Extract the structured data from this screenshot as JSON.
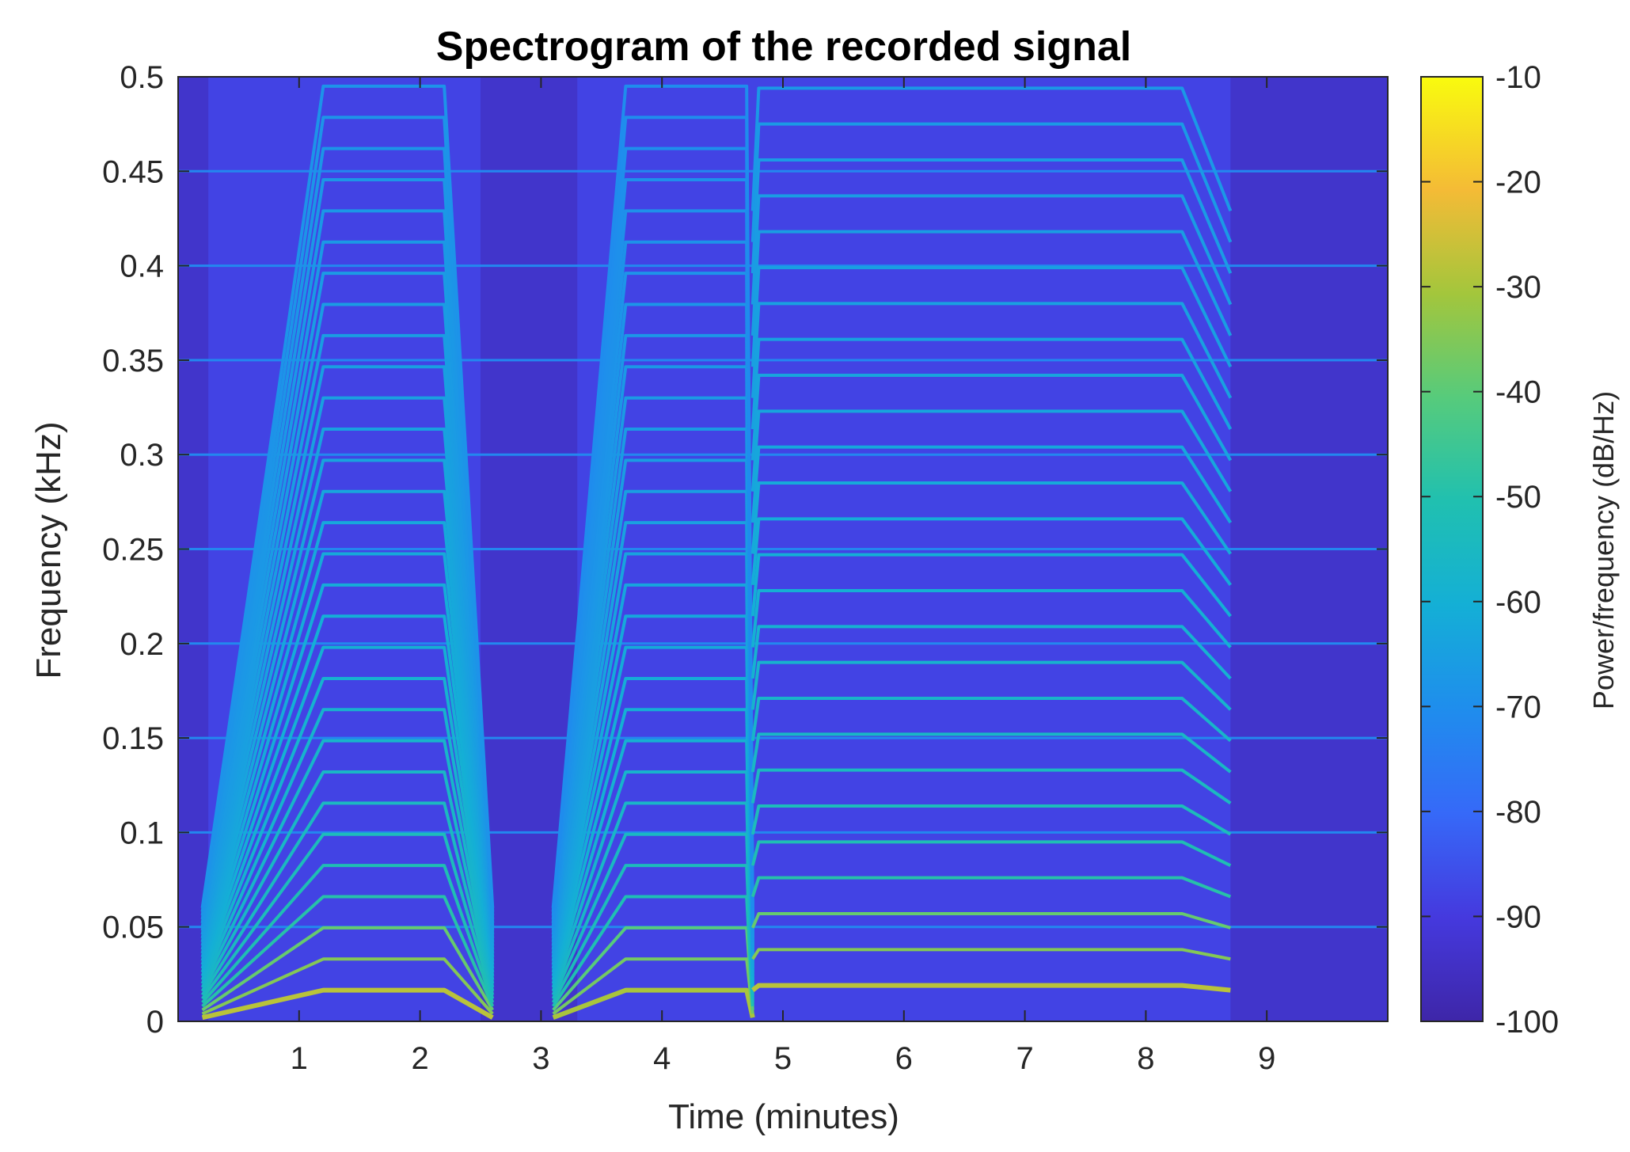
{
  "chart_data": {
    "type": "heatmap",
    "title": "Spectrogram of the recorded signal",
    "xlabel": "Time (minutes)",
    "ylabel": "Frequency (kHz)",
    "colorbar_label": "Power/frequency (dB/Hz)",
    "xlim": [
      0,
      10
    ],
    "ylim": [
      0,
      0.5
    ],
    "clim": [
      -100,
      -10
    ],
    "colormap": "parula",
    "grid": false,
    "colorbar_position": "right",
    "x_ticks": [
      1,
      2,
      3,
      4,
      5,
      6,
      7,
      8,
      9
    ],
    "x_tick_labels": [
      "1",
      "2",
      "3",
      "4",
      "5",
      "6",
      "7",
      "8",
      "9"
    ],
    "y_ticks": [
      0,
      0.05,
      0.1,
      0.15,
      0.2,
      0.25,
      0.3,
      0.35,
      0.4,
      0.45,
      0.5
    ],
    "y_tick_labels": [
      "0",
      "0.05",
      "0.1",
      "0.15",
      "0.2",
      "0.25",
      "0.3",
      "0.35",
      "0.4",
      "0.45",
      "0.5"
    ],
    "colorbar_ticks": [
      -10,
      -20,
      -30,
      -40,
      -50,
      -60,
      -70,
      -80,
      -90,
      -100
    ],
    "colorbar_tick_labels": [
      "-10",
      "-20",
      "-30",
      "-40",
      "-50",
      "-60",
      "-70",
      "-80",
      "-90",
      "-100"
    ],
    "background_level_db": -88,
    "quiet_level_db": -95,
    "quiet_segments_minutes": [
      [
        0.0,
        0.25
      ],
      [
        2.5,
        3.3
      ],
      [
        8.7,
        10.0
      ]
    ],
    "constant_tones_khz": [
      0.05,
      0.1,
      0.15,
      0.2,
      0.25,
      0.3,
      0.35,
      0.4,
      0.45
    ],
    "constant_tone_level_db": -72,
    "harmonic_segments": [
      {
        "start_min": 0.2,
        "ramp_end_min": 1.2,
        "end_min": 2.2,
        "stop_min": 2.6,
        "fundamental_start_khz": 0.002,
        "fundamental_end_khz": 0.0165,
        "level_db": -28
      },
      {
        "start_min": 3.1,
        "ramp_end_min": 3.7,
        "end_min": 4.7,
        "stop_min": 4.75,
        "fundamental_start_khz": 0.002,
        "fundamental_end_khz": 0.0165,
        "level_db": -30
      },
      {
        "start_min": 4.75,
        "ramp_end_min": 4.8,
        "end_min": 8.3,
        "stop_min": 8.7,
        "fundamental_start_khz": 0.0165,
        "fundamental_end_khz": 0.019,
        "level_db": -28
      }
    ]
  }
}
